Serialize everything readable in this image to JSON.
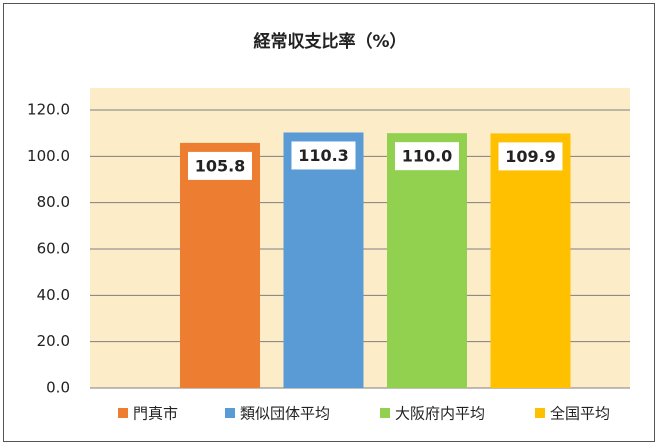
{
  "chart_data": {
    "type": "bar",
    "title": "経常収支比率（%）",
    "categories": [
      "門真市",
      "類似団体平均",
      "大阪府内平均",
      "全国平均"
    ],
    "values": [
      105.8,
      110.3,
      110.0,
      109.9
    ],
    "value_labels": [
      "105.8",
      "110.3",
      "110.0",
      "109.9"
    ],
    "colors": [
      "#ed7d31",
      "#5b9bd5",
      "#92d050",
      "#ffc000"
    ],
    "ylim": [
      0,
      120
    ],
    "yticks": [
      {
        "value": 0,
        "label": "0.0"
      },
      {
        "value": 20,
        "label": "20.0"
      },
      {
        "value": 40,
        "label": "40.0"
      },
      {
        "value": 60,
        "label": "60.0"
      },
      {
        "value": 80,
        "label": "80.0"
      },
      {
        "value": 100,
        "label": "100.0"
      },
      {
        "value": 120,
        "label": "120.0"
      }
    ],
    "grid": true
  }
}
